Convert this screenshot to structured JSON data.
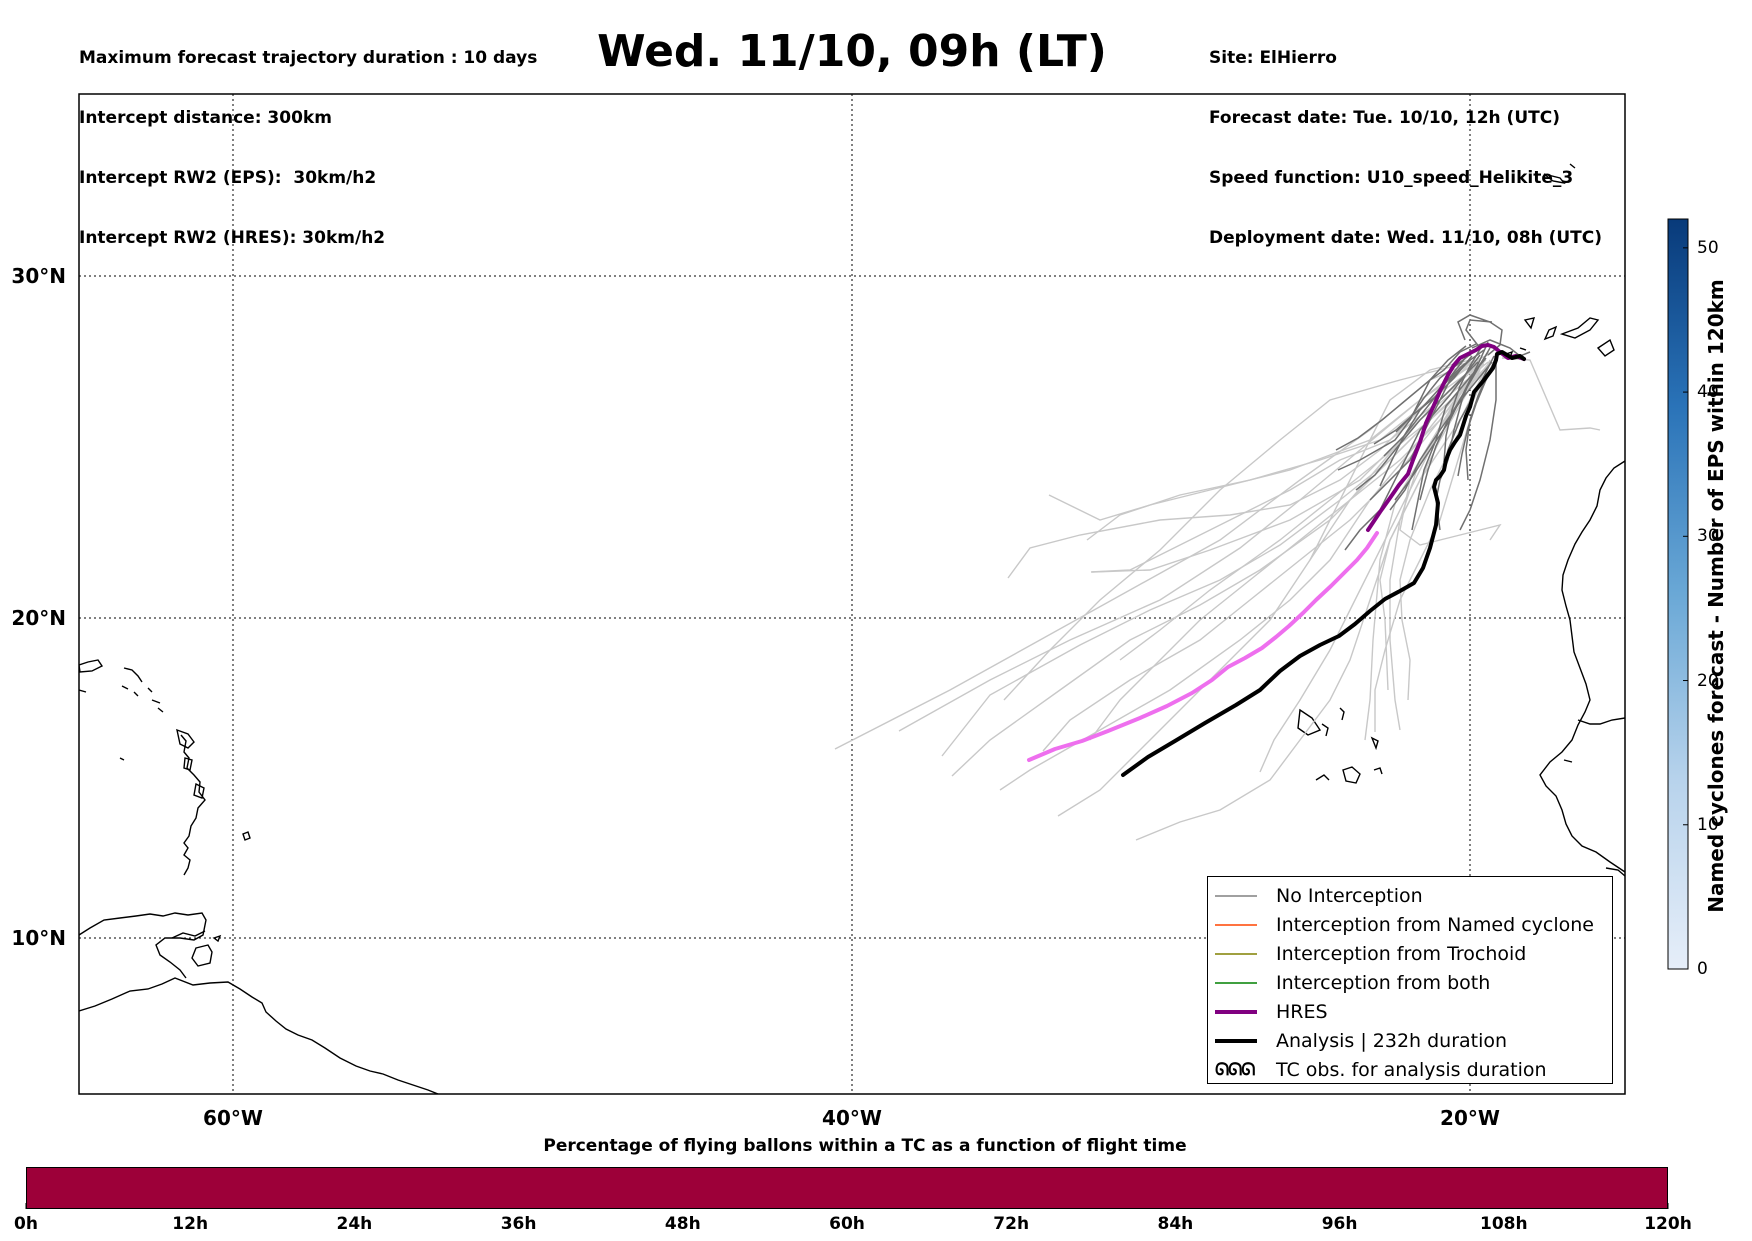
{
  "header": {
    "info_left": [
      "Maximum forecast trajectory duration : 10 days",
      "Intercept distance: 300km",
      "Intercept RW2 (EPS):  30km/h2",
      "Intercept RW2 (HRES): 30km/h2"
    ],
    "title": "Wed. 11/10, 09h (LT)",
    "info_right": [
      "Site: ElHierro",
      "Forecast date: Tue. 10/10, 12h (UTC)",
      "Speed function: U10_speed_Helikite_3",
      "Deployment date: Wed. 11/10, 08h (UTC)"
    ]
  },
  "map": {
    "lat_labels": [
      "30°N",
      "20°N",
      "10°N"
    ],
    "lon_labels": [
      "60°W",
      "40°W",
      "20°W"
    ],
    "gridlines": true
  },
  "legend": {
    "items": [
      {
        "label": "No Interception",
        "color": "#808080",
        "width": 1.5
      },
      {
        "label": "Interception from Named cyclone",
        "color": "#ff4500",
        "width": 1.5
      },
      {
        "label": "Interception from Trochoid",
        "color": "#808000",
        "width": 1.5
      },
      {
        "label": "Interception from both",
        "color": "#008000",
        "width": 1.5
      },
      {
        "label": "HRES",
        "color": "#800080",
        "width": 4
      },
      {
        "label": "Analysis | 232h duration",
        "color": "#000000",
        "width": 4
      }
    ],
    "symbol_item": {
      "symbol": "ᘏᘏᘏ",
      "label": "TC obs. for analysis duration",
      "icon": "tc-symbol-icon"
    }
  },
  "colorbar_vertical": {
    "label": "Named cyclones forecast - Number of EPS within 120km",
    "ticks": [
      "0",
      "10",
      "20",
      "30",
      "40",
      "50"
    ],
    "max": 52,
    "color_low": "#e6eef9",
    "color_high": "#083a7a"
  },
  "colorbar_bottom": {
    "title": "Percentage of flying ballons within a TC as a function of flight time",
    "ticks": [
      "0h",
      "12h",
      "24h",
      "36h",
      "48h",
      "60h",
      "72h",
      "84h",
      "96h",
      "108h",
      "120h"
    ],
    "color": "#9d0039"
  },
  "colors": {
    "hres_forecast": "#ee6fee",
    "hres_analysis": "#800080",
    "eps_light": "#c8c8c8",
    "eps_dark": "#707070",
    "analysis": "#000000"
  }
}
